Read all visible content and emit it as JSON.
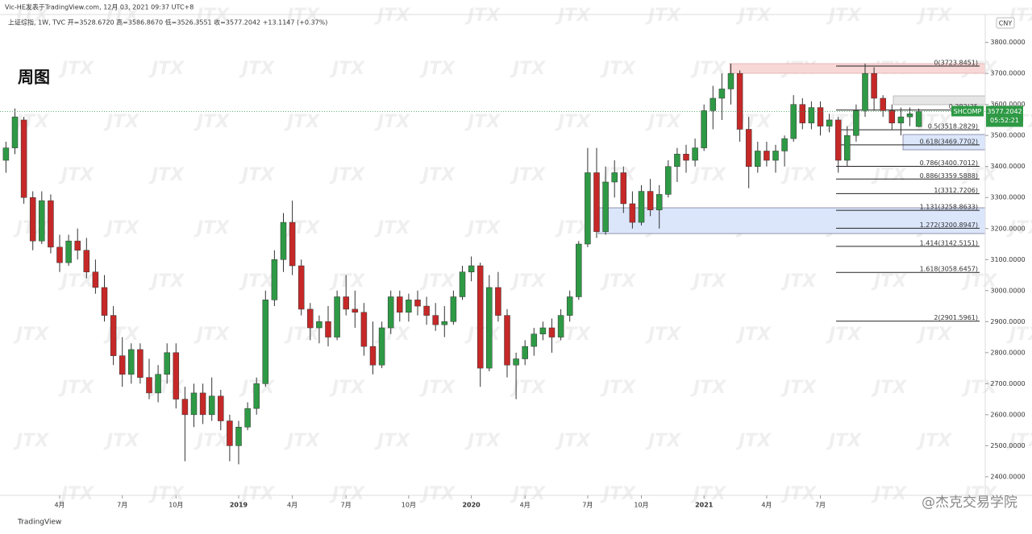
{
  "chart_data": {
    "type": "candlestick",
    "header": "Vic-HE发表于TradingView.com, 12月 03, 2021 09:37 UTC+8",
    "symbol_line": "上证综指, 1W, TVC  开=3528.6720  高=3586.8670  低=3526.3551  收=3577.2042  +13.1147 (+0.37%)",
    "title": "周图",
    "currency": "CNY",
    "ticker": "SHCOMP",
    "last_price": {
      "value": 3577.2042,
      "label": "3577.2042"
    },
    "countdown": "05:52:21",
    "brand": "TradingView",
    "credit": "@杰克交易学院",
    "watermark": "JTX",
    "up_color": "#2e9a45",
    "down_color": "#c62828",
    "ylim": [
      2340,
      3890
    ],
    "yticks": [
      {
        "value": 2400,
        "label": "2400.0000"
      },
      {
        "value": 2500,
        "label": "2500.0000"
      },
      {
        "value": 2600,
        "label": "2600.0000"
      },
      {
        "value": 2700,
        "label": "2700.0000"
      },
      {
        "value": 2800,
        "label": "2800.0000"
      },
      {
        "value": 2900,
        "label": "2900.0000"
      },
      {
        "value": 3000,
        "label": "3000.0000"
      },
      {
        "value": 3100,
        "label": "3100.0000"
      },
      {
        "value": 3200,
        "label": "3200.0000"
      },
      {
        "value": 3300,
        "label": "3300.0000"
      },
      {
        "value": 3400,
        "label": "3400.0000"
      },
      {
        "value": 3500,
        "label": "3500.0000"
      },
      {
        "value": 3600,
        "label": "3600.0000"
      },
      {
        "value": 3700,
        "label": "3700.0000"
      },
      {
        "value": 3800,
        "label": "3800.0000"
      }
    ],
    "xticks": [
      {
        "value": 6,
        "label": "4月"
      },
      {
        "value": 13,
        "label": "7月"
      },
      {
        "value": 19,
        "label": "10月"
      },
      {
        "value": 26,
        "label": "2019"
      },
      {
        "value": 32,
        "label": "4月"
      },
      {
        "value": 38,
        "label": "7月"
      },
      {
        "value": 45,
        "label": "10月"
      },
      {
        "value": 52,
        "label": "2020"
      },
      {
        "value": 58,
        "label": "4月"
      },
      {
        "value": 65,
        "label": "7月"
      },
      {
        "value": 71,
        "label": "10月"
      },
      {
        "value": 78,
        "label": "2021"
      },
      {
        "value": 85,
        "label": "4月"
      },
      {
        "value": 91,
        "label": "7月"
      }
    ],
    "fib_levels": [
      {
        "value": 3723.8451,
        "label": "0(3723.8451)"
      },
      {
        "value": 3582,
        "label": "0.382(35"
      },
      {
        "value": 3518.2829,
        "label": "0.5(3518.2829)"
      },
      {
        "value": 3469.7702,
        "label": "0.618(3469.7702)"
      },
      {
        "value": 3400.7012,
        "label": "0.786(3400.7012)"
      },
      {
        "value": 3359.5888,
        "label": "0.886(3359.5888)"
      },
      {
        "value": 3312.7206,
        "label": "1(3312.7206)"
      },
      {
        "value": 3258.8633,
        "label": "1.131(3258.8633)"
      },
      {
        "value": 3200.8947,
        "label": "1.272(3200.8947)"
      },
      {
        "value": 3142.5151,
        "label": "1.414(3142.5151)"
      },
      {
        "value": 3058.6457,
        "label": "1.618(3058.6457)"
      },
      {
        "value": 2901.5961,
        "label": "2(2901.5961)"
      }
    ],
    "ohlc": [
      [
        3420,
        3480,
        3380,
        3460
      ],
      [
        3460,
        3587,
        3440,
        3560
      ],
      [
        3550,
        3560,
        3280,
        3300
      ],
      [
        3300,
        3320,
        3130,
        3160
      ],
      [
        3160,
        3320,
        3150,
        3290
      ],
      [
        3290,
        3310,
        3120,
        3140
      ],
      [
        3140,
        3180,
        3060,
        3090
      ],
      [
        3090,
        3180,
        3080,
        3160
      ],
      [
        3160,
        3200,
        3100,
        3130
      ],
      [
        3130,
        3170,
        3040,
        3060
      ],
      [
        3060,
        3100,
        2990,
        3010
      ],
      [
        3010,
        3050,
        2900,
        2920
      ],
      [
        2920,
        2950,
        2760,
        2790
      ],
      [
        2790,
        2850,
        2690,
        2730
      ],
      [
        2730,
        2830,
        2700,
        2810
      ],
      [
        2810,
        2830,
        2700,
        2720
      ],
      [
        2720,
        2780,
        2650,
        2670
      ],
      [
        2670,
        2760,
        2640,
        2730
      ],
      [
        2730,
        2830,
        2700,
        2800
      ],
      [
        2800,
        2830,
        2620,
        2650
      ],
      [
        2650,
        2690,
        2450,
        2600
      ],
      [
        2600,
        2700,
        2560,
        2670
      ],
      [
        2670,
        2700,
        2570,
        2600
      ],
      [
        2600,
        2720,
        2580,
        2660
      ],
      [
        2660,
        2680,
        2550,
        2580
      ],
      [
        2580,
        2600,
        2450,
        2500
      ],
      [
        2500,
        2580,
        2440,
        2560
      ],
      [
        2560,
        2640,
        2550,
        2620
      ],
      [
        2620,
        2720,
        2600,
        2700
      ],
      [
        2700,
        3000,
        2690,
        2970
      ],
      [
        2970,
        3130,
        2950,
        3100
      ],
      [
        3100,
        3250,
        3060,
        3220
      ],
      [
        3220,
        3290,
        3050,
        3080
      ],
      [
        3080,
        3100,
        2920,
        2940
      ],
      [
        2940,
        2960,
        2840,
        2880
      ],
      [
        2880,
        2920,
        2830,
        2900
      ],
      [
        2900,
        2950,
        2820,
        2850
      ],
      [
        2850,
        3000,
        2840,
        2980
      ],
      [
        2980,
        3050,
        2920,
        2940
      ],
      [
        2940,
        3000,
        2880,
        2930
      ],
      [
        2930,
        2960,
        2790,
        2820
      ],
      [
        2820,
        2900,
        2730,
        2760
      ],
      [
        2760,
        2900,
        2750,
        2880
      ],
      [
        2880,
        3000,
        2860,
        2980
      ],
      [
        2980,
        3000,
        2900,
        2930
      ],
      [
        2930,
        2990,
        2900,
        2970
      ],
      [
        2970,
        3000,
        2920,
        2950
      ],
      [
        2950,
        2980,
        2890,
        2920
      ],
      [
        2920,
        2960,
        2870,
        2890
      ],
      [
        2890,
        2950,
        2850,
        2900
      ],
      [
        2900,
        3000,
        2890,
        2980
      ],
      [
        2980,
        3080,
        2970,
        3060
      ],
      [
        3060,
        3110,
        3030,
        3080
      ],
      [
        3080,
        3090,
        2690,
        2750
      ],
      [
        2750,
        3050,
        2740,
        3010
      ],
      [
        3010,
        3060,
        2900,
        2920
      ],
      [
        2920,
        2940,
        2720,
        2760
      ],
      [
        2760,
        2800,
        2650,
        2780
      ],
      [
        2780,
        2840,
        2760,
        2820
      ],
      [
        2820,
        2880,
        2790,
        2860
      ],
      [
        2860,
        2900,
        2840,
        2880
      ],
      [
        2880,
        2910,
        2800,
        2850
      ],
      [
        2850,
        2940,
        2840,
        2920
      ],
      [
        2920,
        3000,
        2900,
        2980
      ],
      [
        2980,
        3160,
        2970,
        3150
      ],
      [
        3150,
        3460,
        3140,
        3380
      ],
      [
        3380,
        3460,
        3170,
        3190
      ],
      [
        3190,
        3400,
        3180,
        3350
      ],
      [
        3350,
        3420,
        3300,
        3380
      ],
      [
        3380,
        3400,
        3250,
        3280
      ],
      [
        3280,
        3320,
        3200,
        3220
      ],
      [
        3220,
        3340,
        3210,
        3320
      ],
      [
        3320,
        3360,
        3240,
        3260
      ],
      [
        3260,
        3340,
        3200,
        3310
      ],
      [
        3310,
        3420,
        3300,
        3400
      ],
      [
        3400,
        3460,
        3350,
        3440
      ],
      [
        3440,
        3470,
        3380,
        3420
      ],
      [
        3420,
        3490,
        3400,
        3460
      ],
      [
        3460,
        3600,
        3450,
        3580
      ],
      [
        3580,
        3660,
        3520,
        3620
      ],
      [
        3620,
        3700,
        3550,
        3650
      ],
      [
        3650,
        3732,
        3600,
        3700
      ],
      [
        3700,
        3710,
        3480,
        3520
      ],
      [
        3520,
        3560,
        3330,
        3400
      ],
      [
        3400,
        3480,
        3380,
        3450
      ],
      [
        3450,
        3480,
        3400,
        3420
      ],
      [
        3420,
        3470,
        3380,
        3450
      ],
      [
        3450,
        3500,
        3400,
        3490
      ],
      [
        3490,
        3630,
        3480,
        3600
      ],
      [
        3600,
        3620,
        3520,
        3540
      ],
      [
        3540,
        3610,
        3520,
        3590
      ],
      [
        3590,
        3610,
        3500,
        3530
      ],
      [
        3530,
        3570,
        3510,
        3550
      ],
      [
        3550,
        3560,
        3380,
        3420
      ],
      [
        3420,
        3530,
        3400,
        3500
      ],
      [
        3500,
        3600,
        3480,
        3580
      ],
      [
        3580,
        3732,
        3560,
        3700
      ],
      [
        3700,
        3720,
        3580,
        3620
      ],
      [
        3620,
        3630,
        3560,
        3580
      ],
      [
        3580,
        3600,
        3520,
        3540
      ],
      [
        3540,
        3590,
        3500,
        3560
      ],
      [
        3560,
        3590,
        3530,
        3570
      ],
      [
        3528.672,
        3586.867,
        3526.3551,
        3577.2042
      ]
    ]
  }
}
